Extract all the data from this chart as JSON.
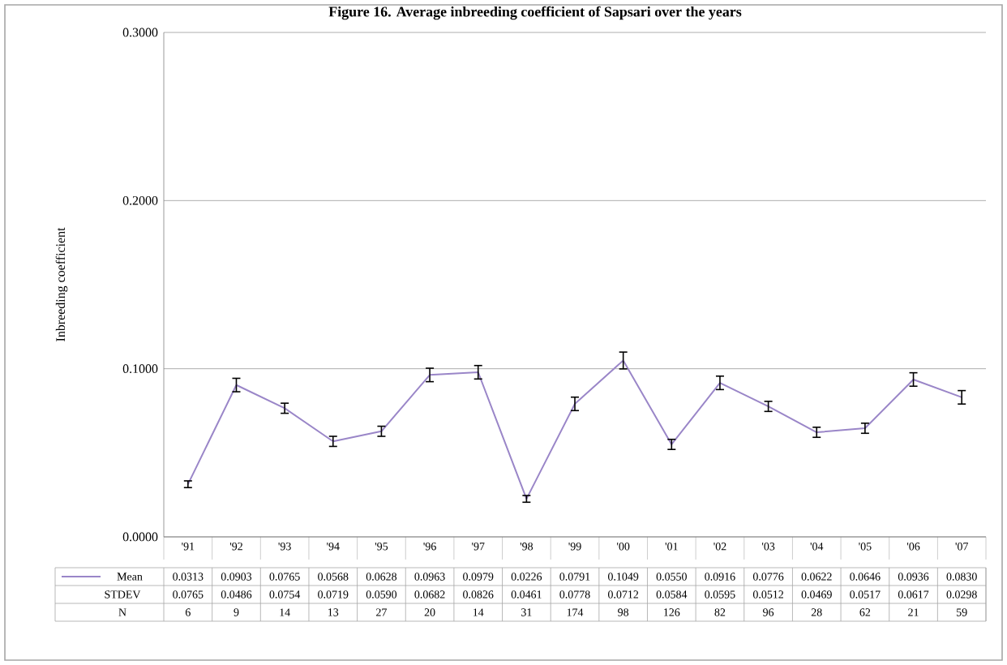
{
  "chart_data": {
    "type": "line",
    "title": "Figure 16. Average inbreeding coefficient of Sapsari over the years",
    "ylabel": "Inbreeding coefficient",
    "categories": [
      "'91",
      "'92",
      "'93",
      "'94",
      "'95",
      "'96",
      "'97",
      "'98",
      "'99",
      "'00",
      "'01",
      "'02",
      "'03",
      "'04",
      "'05",
      "'06",
      "'07"
    ],
    "series": [
      {
        "name": "Mean",
        "color": "#9a86c8",
        "values": [
          0.0313,
          0.0903,
          0.0765,
          0.0568,
          0.0628,
          0.0963,
          0.0979,
          0.0226,
          0.0791,
          0.1049,
          0.055,
          0.0916,
          0.0776,
          0.0622,
          0.0646,
          0.0936,
          0.083
        ],
        "errors": [
          0.002,
          0.004,
          0.003,
          0.003,
          0.003,
          0.004,
          0.004,
          0.002,
          0.004,
          0.005,
          0.003,
          0.004,
          0.003,
          0.003,
          0.003,
          0.004,
          0.004
        ],
        "value_labels": [
          "0.0313",
          "0.0903",
          "0.0765",
          "0.0568",
          "0.0628",
          "0.0963",
          "0.0979",
          "0.0226",
          "0.0791",
          "0.1049",
          "0.0550",
          "0.0916",
          "0.0776",
          "0.0622",
          "0.0646",
          "0.0936",
          "0.0830"
        ]
      }
    ],
    "ylim": [
      0,
      0.3
    ],
    "yticks": [
      {
        "value": 0,
        "label": "0.0000"
      },
      {
        "value": 0.1,
        "label": "0.1000"
      },
      {
        "value": 0.2,
        "label": "0.2000"
      },
      {
        "value": 0.3,
        "label": "0.3000"
      }
    ],
    "grid": "y",
    "legend": "bottom",
    "marker": "none",
    "line_style": "solid",
    "annotations": [
      "STDEV",
      "0.0765",
      "0.0486",
      "0.0754",
      "0.0719",
      "0.0590",
      "0.0682",
      "0.0826",
      "0.0461",
      "0.0778",
      "0.0712",
      "0.0584",
      "0.0595",
      "0.0512",
      "0.0469",
      "0.0517",
      "0.0617",
      "0.0298",
      "N",
      "6",
      "9",
      "14",
      "13",
      "27",
      "20",
      "14",
      "31",
      "174",
      "98",
      "126",
      "82",
      "96",
      "28",
      "62",
      "21",
      "59"
    ]
  }
}
